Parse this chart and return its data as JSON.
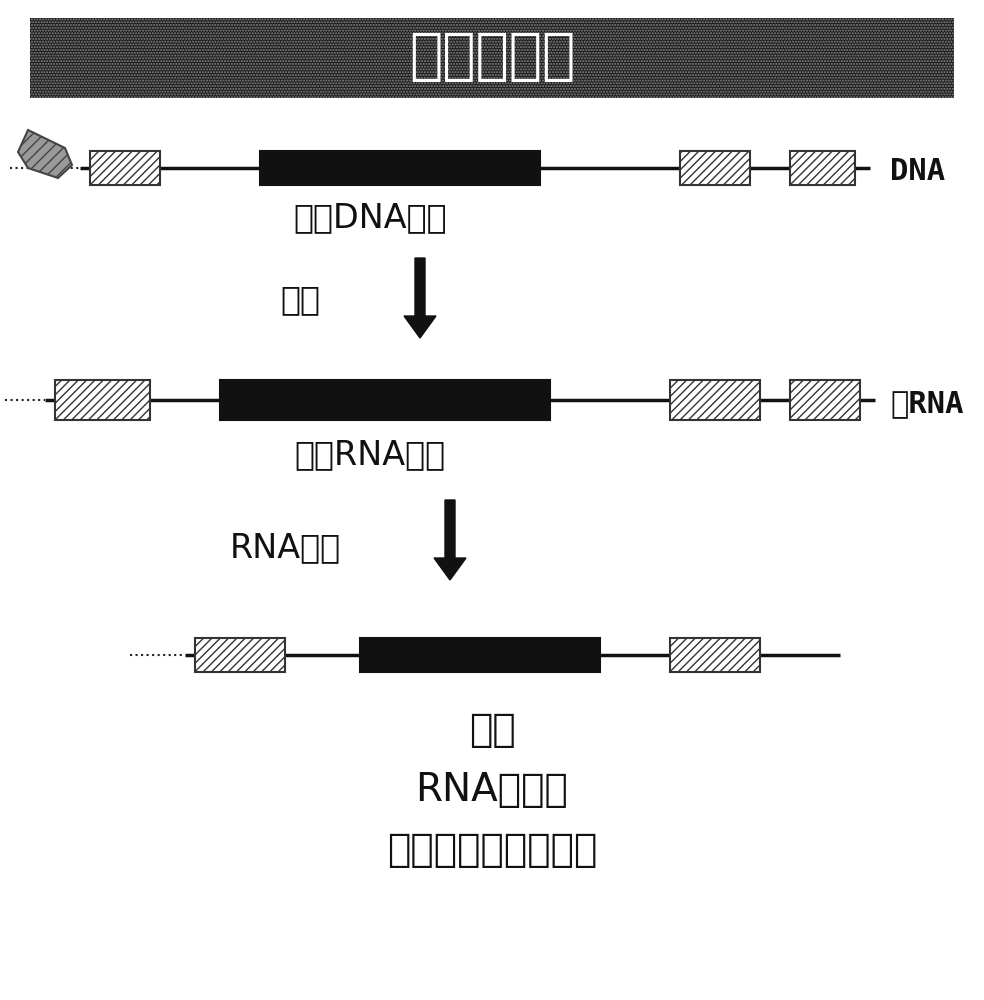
{
  "title_text": "人遗传疾病",
  "title_bg_color": "#1a1a1a",
  "title_text_color": "#ffffff",
  "title_fontsize": 40,
  "label_dna": "DNA",
  "label_rna": "靶RNA",
  "label_defect_dna": "缺降DNA序列",
  "label_transcription": "转录",
  "label_defect_rna": "缺降RNA序列",
  "label_splicing": "RNA剪接",
  "label_result1": "疾病",
  "label_result2": "RNA致病性",
  "label_result3": "致病性蛋白质的翻译",
  "arrow_color": "#111111",
  "strand_color": "#111111",
  "bg_color": "#ffffff",
  "label_fontsize": 24,
  "result_fontsize": 28,
  "step_label_fontsize": 24
}
